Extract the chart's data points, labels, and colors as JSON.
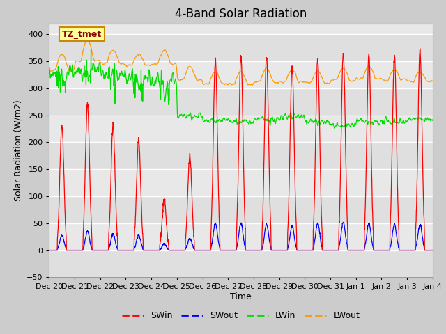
{
  "title": "4-Band Solar Radiation",
  "ylabel": "Solar Radiation (W/m2)",
  "xlabel": "Time",
  "ylim": [
    -50,
    420
  ],
  "xlim": [
    0,
    15
  ],
  "xtick_labels": [
    "Dec 20",
    "Dec 21",
    "Dec 22",
    "Dec 23",
    "Dec 24",
    "Dec 25",
    "Dec 26",
    "Dec 27",
    "Dec 28",
    "Dec 29",
    "Dec 30",
    "Dec 31",
    "Jan 1",
    "Jan 2",
    "Jan 3",
    "Jan 4"
  ],
  "colors": {
    "SWin": "#ff0000",
    "SWout": "#0000ff",
    "LWin": "#00dd00",
    "LWout": "#ff9900"
  },
  "legend_labels": [
    "SWin",
    "SWout",
    "LWin",
    "LWout"
  ],
  "annotation_text": "TZ_tmet",
  "annotation_box_color": "#ffff99",
  "annotation_box_edge": "#cc8800",
  "background_color": "#cccccc",
  "plot_bg_color": "#e8e8e8",
  "grid_color": "#ffffff",
  "title_fontsize": 12,
  "label_fontsize": 9,
  "tick_fontsize": 8
}
